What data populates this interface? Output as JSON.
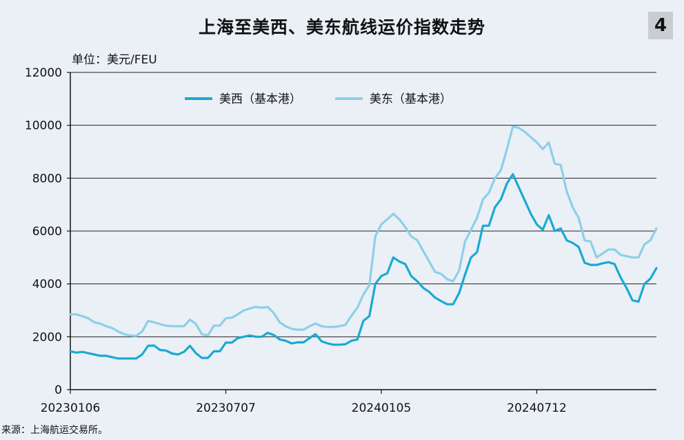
{
  "header": {
    "title": "上海至美西、美东航线运价指数走势",
    "badge": "4"
  },
  "unit_label": "单位：美元/FEU",
  "footer": {
    "source": "来源：上海航运交易所。"
  },
  "colors": {
    "west": "#19a9d3",
    "east": "#8ccfe8",
    "axis": "#111111",
    "grid": "#222222",
    "background": "#eaf0f6"
  },
  "chart_data": {
    "type": "line",
    "title": "上海至美西、美东航线运价指数走势",
    "ylabel": "单位：美元/FEU",
    "xlabel": "",
    "ylim": [
      0,
      12000
    ],
    "yticks": [
      "0",
      "2000",
      "4000",
      "6000",
      "8000",
      "10000",
      "12000"
    ],
    "xticks": [
      {
        "index": 0,
        "label": "20230106"
      },
      {
        "index": 26,
        "label": "20230707"
      },
      {
        "index": 52,
        "label": "20240105"
      },
      {
        "index": 78,
        "label": "20240712"
      }
    ],
    "grid": "horizontal",
    "legend": "top-center",
    "series": [
      {
        "name": "美西（基本港）",
        "color": "#19a9d3",
        "values": [
          1450,
          1400,
          1430,
          1380,
          1330,
          1280,
          1280,
          1230,
          1180,
          1180,
          1180,
          1180,
          1330,
          1660,
          1670,
          1500,
          1480,
          1370,
          1330,
          1430,
          1660,
          1380,
          1200,
          1200,
          1450,
          1450,
          1780,
          1780,
          1950,
          2000,
          2050,
          2000,
          2000,
          2150,
          2070,
          1900,
          1850,
          1750,
          1790,
          1790,
          1950,
          2100,
          1830,
          1750,
          1700,
          1700,
          1720,
          1850,
          1900,
          2600,
          2780,
          4000,
          4300,
          4400,
          5000,
          4850,
          4750,
          4300,
          4100,
          3850,
          3700,
          3480,
          3350,
          3230,
          3230,
          3650,
          4350,
          5000,
          5200,
          6200,
          6200,
          6900,
          7200,
          7800,
          8150,
          7650,
          7150,
          6650,
          6250,
          6050,
          6600,
          6000,
          6100,
          5650,
          5550,
          5400,
          4800,
          4720,
          4720,
          4780,
          4820,
          4750,
          4250,
          3850,
          3380,
          3330,
          4000,
          4200,
          4600
        ]
      },
      {
        "name": "美东（基本港）",
        "color": "#8ccfe8",
        "values": [
          2850,
          2850,
          2780,
          2700,
          2550,
          2500,
          2400,
          2330,
          2200,
          2100,
          2050,
          2030,
          2200,
          2600,
          2550,
          2480,
          2420,
          2400,
          2400,
          2400,
          2650,
          2480,
          2100,
          2050,
          2420,
          2420,
          2700,
          2720,
          2850,
          3000,
          3070,
          3130,
          3100,
          3130,
          2900,
          2550,
          2400,
          2300,
          2270,
          2270,
          2400,
          2500,
          2400,
          2370,
          2370,
          2400,
          2450,
          2800,
          3100,
          3600,
          3950,
          5800,
          6250,
          6450,
          6650,
          6450,
          6150,
          5800,
          5650,
          5250,
          4850,
          4450,
          4380,
          4180,
          4100,
          4500,
          5600,
          6050,
          6500,
          7200,
          7450,
          8000,
          8300,
          9100,
          9950,
          9900,
          9750,
          9550,
          9350,
          9100,
          9350,
          8550,
          8500,
          7500,
          6900,
          6500,
          5650,
          5600,
          5000,
          5150,
          5300,
          5300,
          5100,
          5050,
          5000,
          5000,
          5500,
          5650,
          6100
        ]
      }
    ]
  }
}
